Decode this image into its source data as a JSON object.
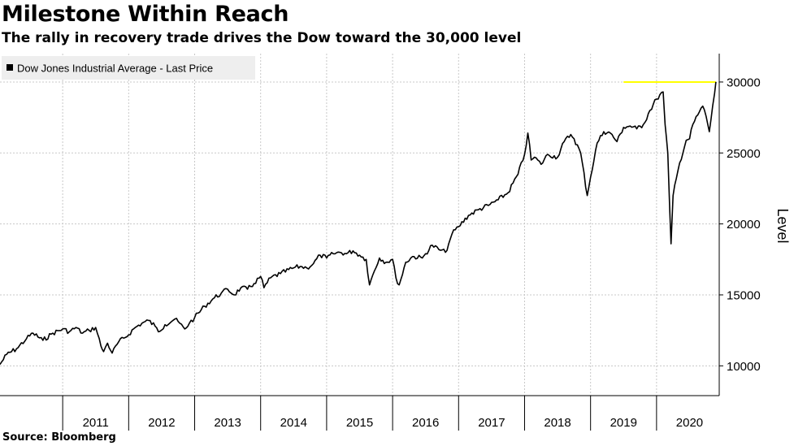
{
  "header": {
    "title": "Milestone Within Reach",
    "subtitle": "The rally in recovery trade drives the Dow toward the 30,000 level"
  },
  "footer": {
    "source": "Source: Bloomberg"
  },
  "colors": {
    "series": "#000000",
    "reference_line": "#ffff00",
    "grid": "#c8c8c8",
    "legend_bg": "#eeeeee"
  },
  "chart_data": {
    "type": "line",
    "title": "Milestone Within Reach",
    "subtitle": "The rally in recovery trade drives the Dow toward the 30,000 level",
    "xlabel": "",
    "ylabel": "Level",
    "ylim": [
      7900,
      32000
    ],
    "xlim": [
      2010.05,
      2020.95
    ],
    "yticks": [
      10000,
      15000,
      20000,
      25000,
      30000
    ],
    "xtick_labels": [
      "2011",
      "2012",
      "2013",
      "2014",
      "2015",
      "2016",
      "2017",
      "2018",
      "2019",
      "2020"
    ],
    "grid": true,
    "legend": {
      "position": "top-left",
      "entries": [
        "Dow Jones Industrial Average - Last Price"
      ]
    },
    "reference_line": {
      "value": 30000,
      "x_start": 2019.5,
      "x_end": 2020.9
    },
    "series": [
      {
        "name": "Dow Jones Industrial Average - Last Price",
        "x": [
          2010.05,
          2010.15,
          2010.3,
          2010.45,
          2010.55,
          2010.7,
          2010.85,
          2011.0,
          2011.1,
          2011.2,
          2011.3,
          2011.4,
          2011.5,
          2011.58,
          2011.62,
          2011.68,
          2011.75,
          2011.85,
          2011.95,
          2012.1,
          2012.2,
          2012.3,
          2012.4,
          2012.45,
          2012.55,
          2012.7,
          2012.85,
          2012.92,
          2013.0,
          2013.15,
          2013.3,
          2013.4,
          2013.5,
          2013.6,
          2013.7,
          2013.8,
          2013.9,
          2014.0,
          2014.05,
          2014.15,
          2014.3,
          2014.5,
          2014.6,
          2014.7,
          2014.8,
          2014.9,
          2015.0,
          2015.1,
          2015.2,
          2015.3,
          2015.4,
          2015.5,
          2015.6,
          2015.65,
          2015.7,
          2015.8,
          2015.9,
          2016.0,
          2016.05,
          2016.1,
          2016.2,
          2016.3,
          2016.45,
          2016.5,
          2016.6,
          2016.7,
          2016.8,
          2016.85,
          2016.9,
          2017.0,
          2017.15,
          2017.3,
          2017.45,
          2017.6,
          2017.75,
          2017.9,
          2018.0,
          2018.05,
          2018.1,
          2018.15,
          2018.25,
          2018.35,
          2018.5,
          2018.6,
          2018.7,
          2018.75,
          2018.85,
          2018.95,
          2019.0,
          2019.1,
          2019.2,
          2019.3,
          2019.4,
          2019.5,
          2019.6,
          2019.7,
          2019.8,
          2019.9,
          2020.0,
          2020.1,
          2020.13,
          2020.17,
          2020.2,
          2020.22,
          2020.25,
          2020.35,
          2020.45,
          2020.5,
          2020.55,
          2020.65,
          2020.7,
          2020.75,
          2020.8,
          2020.85,
          2020.88,
          2020.9
        ],
        "values": [
          10100,
          10800,
          11200,
          11900,
          12300,
          11800,
          12300,
          12600,
          12400,
          12700,
          12300,
          12500,
          12700,
          11400,
          11000,
          11600,
          10900,
          11700,
          12000,
          12700,
          13000,
          13200,
          12800,
          12400,
          12900,
          13300,
          12600,
          13000,
          13400,
          14200,
          14800,
          15100,
          15400,
          15000,
          15500,
          15400,
          15800,
          16300,
          15500,
          16200,
          16500,
          16900,
          17000,
          16900,
          17200,
          17800,
          17600,
          17900,
          18000,
          17900,
          18100,
          17800,
          17500,
          15700,
          16400,
          17600,
          17300,
          17500,
          16200,
          15700,
          17300,
          17700,
          17600,
          17900,
          18500,
          18200,
          18000,
          18600,
          19300,
          19800,
          20600,
          21000,
          21300,
          21700,
          22200,
          23500,
          24900,
          26400,
          24500,
          24700,
          24200,
          24900,
          24700,
          25800,
          26300,
          26000,
          25000,
          22000,
          23300,
          25700,
          26500,
          26400,
          25800,
          26800,
          26900,
          26700,
          27000,
          28000,
          28800,
          29300,
          27000,
          25000,
          21000,
          18600,
          22000,
          24300,
          25900,
          26000,
          27000,
          27900,
          28300,
          27600,
          26500,
          28300,
          29200,
          30000
        ]
      }
    ]
  }
}
